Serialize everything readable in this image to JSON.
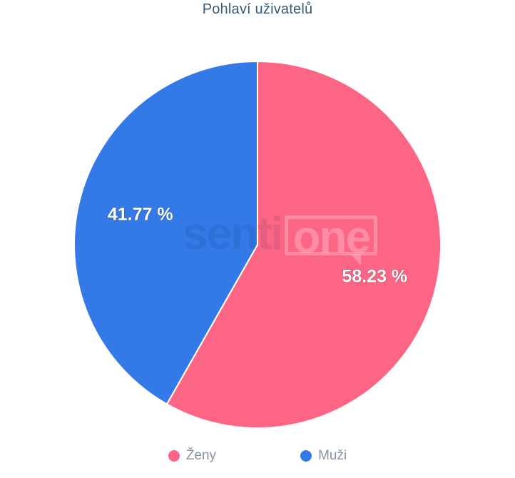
{
  "title": "Pohlaví uživatelů",
  "colors": {
    "background": "#ffffff",
    "pink": "#fd6585",
    "blue": "#3479e8",
    "slice_border": "#ffffff",
    "title_text": "#3d5a76",
    "legend_text": "#8792a3",
    "label_text": "#ffffff"
  },
  "watermark": {
    "part1": "senti",
    "part2": "one"
  },
  "chart_data": {
    "type": "pie",
    "title": "Pohlaví uživatelů",
    "unit": "%",
    "direction": "clockwise",
    "start_angle_deg": 0,
    "legend_position": "bottom",
    "slices": [
      {
        "label": "Ženy",
        "value": 58.23,
        "display": "58.23 %",
        "color": "#fd6585"
      },
      {
        "label": "Muži",
        "value": 41.77,
        "display": "41.77 %",
        "color": "#3479e8"
      }
    ]
  },
  "legend": {
    "items": [
      {
        "label": "Ženy",
        "color": "#fd6585"
      },
      {
        "label": "Muži",
        "color": "#3479e8"
      }
    ]
  }
}
